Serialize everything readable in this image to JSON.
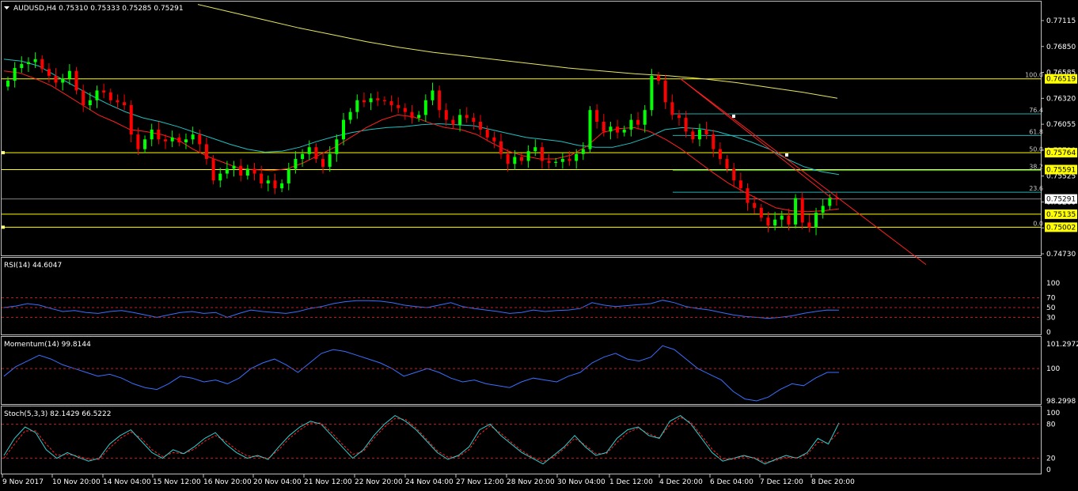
{
  "colors": {
    "background": "#000000",
    "frame": "#c0c0c0",
    "bull_candle": "#00ff00",
    "bear_candle": "#ff0000",
    "ma_fast": "#ff2020",
    "ma_mid": "#20c0c0",
    "ma_slow": "#e8e860",
    "horizontal_level": "#ffff00",
    "fib_line": "#20b0b0",
    "trendline": "#ff2020",
    "indicator_line": "#3a6fff",
    "stoch_signal": "#ff2020",
    "stoch_main": "#30d0d0",
    "level_dash": "#c02020",
    "price_label_bg": "#ffff00",
    "current_price_bg": "#ffffff"
  },
  "header": {
    "symbol_line": "AUDUSD,H4  0.75310 0.75333 0.75285 0.75291"
  },
  "panels": {
    "rsi": {
      "title": "RSI(14) 44.6047",
      "ticks": [
        "100",
        "70",
        "50",
        "30",
        "0"
      ]
    },
    "momentum": {
      "title": "Momentum(14) 99.8144",
      "ticks": [
        "101.2972",
        "100",
        "98.2998"
      ]
    },
    "stoch": {
      "title": "Stoch(5,3,3) 82.1429 66.5222",
      "ticks": [
        "100",
        "80",
        "20",
        "0"
      ]
    }
  },
  "fibonacci": {
    "levels": [
      "100.0",
      "76.4",
      "61.8",
      "50.0",
      "38.2",
      "23.6",
      "0.0"
    ]
  },
  "chart_data": {
    "type": "candlestick",
    "symbol": "AUDUSD",
    "timeframe": "H4",
    "ohlc_header": {
      "open": 0.7531,
      "high": 0.75333,
      "low": 0.75285,
      "close": 0.75291
    },
    "y_ticks": [
      "0.77115",
      "0.76850",
      "0.76585",
      "0.76320",
      "0.76055",
      "0.75790",
      "0.75525",
      "0.75260",
      "0.74995",
      "0.74730"
    ],
    "ylim": [
      0.7467,
      0.7728
    ],
    "x_tick_labels": [
      "9 Nov 2017",
      "10 Nov 20:00",
      "14 Nov 04:00",
      "15 Nov 12:00",
      "16 Nov 20:00",
      "20 Nov 04:00",
      "21 Nov 12:00",
      "22 Nov 20:00",
      "24 Nov 04:00",
      "27 Nov 12:00",
      "28 Nov 20:00",
      "30 Nov 04:00",
      "1 Dec 12:00",
      "4 Dec 20:00",
      "6 Dec 04:00",
      "7 Dec 12:00",
      "8 Dec 20:00"
    ],
    "price_labels": [
      {
        "value": "0.76519",
        "style": "level"
      },
      {
        "value": "0.75764",
        "style": "level"
      },
      {
        "value": "0.75591",
        "style": "level"
      },
      {
        "value": "0.75291",
        "style": "current"
      },
      {
        "value": "0.75135",
        "style": "level"
      },
      {
        "value": "0.75002",
        "style": "level"
      }
    ],
    "closes": [
      0.765,
      0.7663,
      0.7667,
      0.7669,
      0.7672,
      0.7662,
      0.7655,
      0.7648,
      0.7652,
      0.766,
      0.764,
      0.7625,
      0.763,
      0.764,
      0.7638,
      0.763,
      0.7628,
      0.7625,
      0.7595,
      0.758,
      0.759,
      0.76,
      0.759,
      0.7588,
      0.7592,
      0.7587,
      0.759,
      0.7595,
      0.7585,
      0.757,
      0.7548,
      0.7555,
      0.756,
      0.7563,
      0.7553,
      0.756,
      0.7555,
      0.7545,
      0.7548,
      0.754,
      0.7545,
      0.756,
      0.757,
      0.7575,
      0.7582,
      0.757,
      0.7562,
      0.7575,
      0.759,
      0.761,
      0.7618,
      0.763,
      0.7628,
      0.7632,
      0.763,
      0.7629,
      0.7625,
      0.7622,
      0.7618,
      0.7612,
      0.7615,
      0.763,
      0.764,
      0.762,
      0.761,
      0.7605,
      0.7615,
      0.7612,
      0.7608,
      0.76,
      0.7592,
      0.7588,
      0.7575,
      0.7565,
      0.7572,
      0.7568,
      0.7578,
      0.7582,
      0.7568,
      0.7566,
      0.7567,
      0.757,
      0.7568,
      0.7575,
      0.758,
      0.762,
      0.7608,
      0.7598,
      0.7603,
      0.7597,
      0.76,
      0.761,
      0.7605,
      0.762,
      0.7655,
      0.765,
      0.7628,
      0.7615,
      0.7612,
      0.7598,
      0.759,
      0.76,
      0.7595,
      0.758,
      0.757,
      0.756,
      0.7548,
      0.754,
      0.7525,
      0.752,
      0.751,
      0.7502,
      0.7508,
      0.7512,
      0.7503,
      0.753,
      0.7505,
      0.75,
      0.7515,
      0.7522,
      0.753,
      0.75291
    ],
    "ma_fast": [
      0.766,
      0.7658,
      0.7652,
      0.7645,
      0.7635,
      0.7625,
      0.7615,
      0.7608,
      0.76,
      0.7598,
      0.7595,
      0.759,
      0.758,
      0.7572,
      0.7566,
      0.756,
      0.7559,
      0.7558,
      0.756,
      0.7566,
      0.7574,
      0.7582,
      0.7592,
      0.7602,
      0.761,
      0.7615,
      0.7613,
      0.7607,
      0.7602,
      0.76,
      0.7595,
      0.7586,
      0.7578,
      0.7573,
      0.757,
      0.757,
      0.7574,
      0.7583,
      0.7597,
      0.7601,
      0.7602,
      0.7598,
      0.759,
      0.758,
      0.7568,
      0.7556,
      0.7545,
      0.7536,
      0.7528,
      0.752,
      0.7517,
      0.7516,
      0.7517,
      0.7519
    ],
    "ma_mid": [
      0.7672,
      0.767,
      0.7665,
      0.7655,
      0.7645,
      0.7635,
      0.7626,
      0.7618,
      0.7612,
      0.7608,
      0.7603,
      0.7597,
      0.7591,
      0.7585,
      0.758,
      0.7577,
      0.7578,
      0.7582,
      0.7588,
      0.7593,
      0.7597,
      0.76,
      0.7602,
      0.7603,
      0.7605,
      0.7606,
      0.7605,
      0.7604,
      0.76,
      0.7596,
      0.7592,
      0.759,
      0.7588,
      0.7584,
      0.7582,
      0.7582,
      0.7586,
      0.7592,
      0.76,
      0.7602,
      0.7601,
      0.7598,
      0.7593,
      0.7587,
      0.758,
      0.757,
      0.7562,
      0.7557,
      0.7554
    ],
    "ma_slow": [
      0.7728,
      0.772,
      0.7712,
      0.7704,
      0.7697,
      0.769,
      0.7684,
      0.7679,
      0.7675,
      0.7671,
      0.7667,
      0.7663,
      0.766,
      0.7657,
      0.7655,
      0.7652,
      0.7648,
      0.7643,
      0.7638,
      0.7632
    ],
    "rsi": [
      50,
      53,
      58,
      55,
      48,
      42,
      44,
      40,
      38,
      42,
      44,
      40,
      35,
      30,
      35,
      40,
      42,
      38,
      40,
      30,
      38,
      45,
      42,
      40,
      38,
      42,
      48,
      52,
      58,
      62,
      64,
      64,
      63,
      60,
      55,
      52,
      50,
      55,
      60,
      52,
      48,
      45,
      42,
      38,
      40,
      45,
      42,
      44,
      45,
      48,
      60,
      55,
      52,
      54,
      56,
      58,
      65,
      60,
      52,
      48,
      45,
      40,
      35,
      32,
      30,
      28,
      30,
      33,
      38,
      42,
      45,
      44.6
    ],
    "momentum": [
      99.6,
      100.1,
      100.4,
      100.7,
      100.5,
      100.2,
      100.0,
      99.8,
      99.6,
      99.7,
      99.5,
      99.2,
      99.0,
      98.9,
      99.2,
      99.6,
      99.5,
      99.3,
      99.4,
      99.2,
      99.5,
      100.0,
      100.3,
      100.5,
      100.2,
      99.8,
      100.3,
      100.8,
      101.0,
      100.9,
      100.7,
      100.5,
      100.3,
      100.0,
      99.6,
      99.8,
      100.0,
      99.8,
      99.5,
      99.3,
      99.4,
      99.2,
      99.1,
      99.0,
      99.3,
      99.5,
      99.4,
      99.3,
      99.6,
      99.8,
      100.3,
      100.6,
      100.8,
      100.5,
      100.4,
      100.6,
      101.2,
      101.0,
      100.5,
      100.0,
      99.7,
      99.4,
      98.8,
      98.4,
      98.3,
      98.5,
      98.9,
      99.2,
      99.1,
      99.5,
      99.8,
      99.8
    ],
    "stoch_main": [
      25,
      55,
      75,
      65,
      35,
      20,
      30,
      22,
      15,
      20,
      45,
      60,
      70,
      50,
      30,
      20,
      35,
      28,
      40,
      55,
      65,
      45,
      30,
      20,
      25,
      18,
      40,
      60,
      75,
      85,
      80,
      60,
      40,
      20,
      35,
      60,
      80,
      95,
      85,
      70,
      50,
      30,
      18,
      25,
      40,
      70,
      80,
      60,
      45,
      30,
      20,
      10,
      25,
      40,
      60,
      40,
      25,
      30,
      55,
      70,
      75,
      60,
      55,
      85,
      95,
      80,
      55,
      30,
      15,
      20,
      25,
      20,
      10,
      18,
      25,
      20,
      30,
      55,
      45,
      82.1
    ],
    "stoch_signal": [
      20,
      45,
      68,
      68,
      45,
      25,
      27,
      24,
      18,
      18,
      38,
      55,
      66,
      55,
      35,
      23,
      30,
      28,
      36,
      50,
      60,
      50,
      35,
      24,
      23,
      20,
      35,
      55,
      70,
      82,
      82,
      65,
      45,
      27,
      32,
      55,
      75,
      90,
      88,
      73,
      53,
      33,
      22,
      23,
      35,
      62,
      77,
      64,
      48,
      33,
      22,
      14,
      22,
      37,
      55,
      43,
      28,
      28,
      48,
      65,
      73,
      63,
      56,
      78,
      92,
      83,
      60,
      36,
      19,
      18,
      23,
      21,
      13,
      16,
      22,
      21,
      27,
      48,
      47,
      66.5
    ]
  }
}
